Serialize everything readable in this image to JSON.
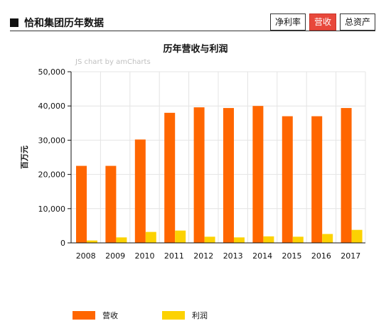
{
  "header": {
    "title": "恰和集团历年数据",
    "tabs": [
      {
        "label": "净利率",
        "active": false
      },
      {
        "label": "营收",
        "active": true
      },
      {
        "label": "总资产",
        "active": false
      }
    ]
  },
  "watermark": "JS chart by amCharts",
  "chart_data": {
    "type": "bar",
    "title": "历年营收与利润",
    "xlabel": "",
    "ylabel": "百万元",
    "ylim": [
      0,
      50000
    ],
    "yticks": [
      "0",
      "10,000",
      "20,000",
      "30,000",
      "40,000",
      "50,000"
    ],
    "categories": [
      "2008",
      "2009",
      "2010",
      "2011",
      "2012",
      "2013",
      "2014",
      "2015",
      "2016",
      "2017"
    ],
    "series": [
      {
        "name": "营收",
        "color": "#ff6600",
        "values": [
          22500,
          22500,
          30200,
          38000,
          39600,
          39400,
          40000,
          37000,
          37000,
          39400
        ]
      },
      {
        "name": "利润",
        "color": "#fcd202",
        "values": [
          700,
          1600,
          3200,
          3600,
          1800,
          1600,
          1900,
          1800,
          2600,
          3800
        ]
      }
    ],
    "legend": "bottom-left",
    "grid": true
  }
}
